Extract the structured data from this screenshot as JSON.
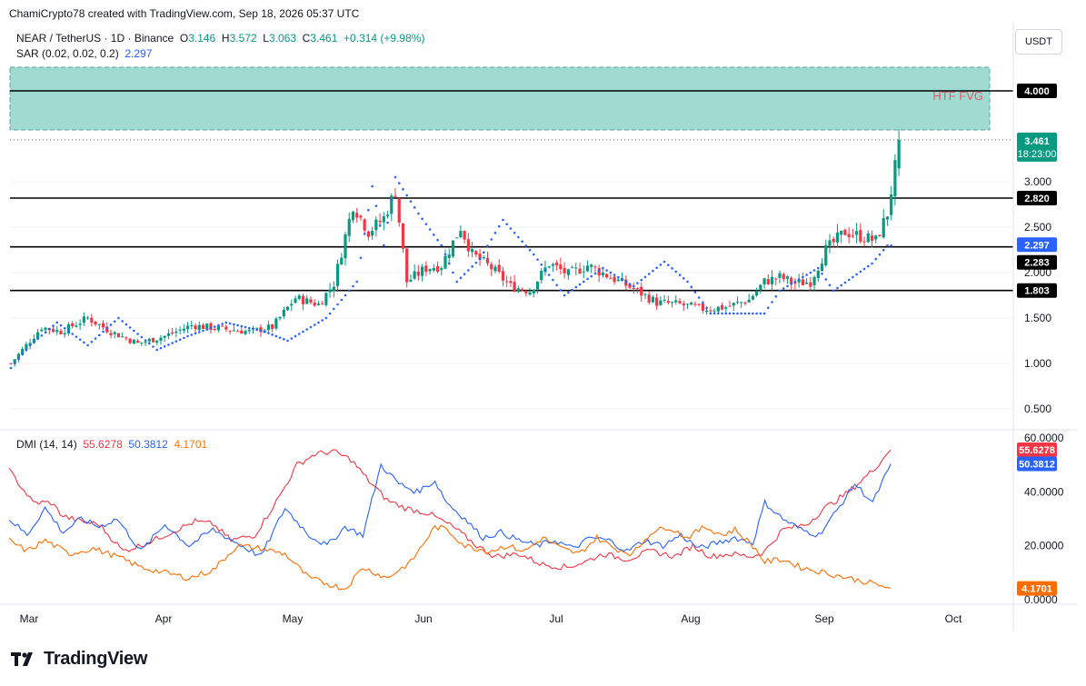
{
  "header": {
    "published": "ChamiCrypto78 created with TradingView.com, Sep 18, 2026 05:37 UTC",
    "symbol": "NEAR / TetherUS · 1D · Binance",
    "o_label": "O",
    "o_value": "3.146",
    "h_label": "H",
    "h_value": "3.572",
    "l_label": "L",
    "l_value": "3.063",
    "c_label": "C",
    "c_value": "3.461",
    "change": "+0.314 (+9.98%)",
    "sar_label": "SAR (0.02, 0.02, 0.2)",
    "sar_value": "2.297",
    "dmi_label": "DMI (14, 14)",
    "dmi_plus": "55.6278",
    "dmi_minus": "50.3812",
    "adx": "4.1701",
    "currency": "USDT",
    "brand": "TradingView"
  },
  "colors": {
    "up": "#089981",
    "down": "#f23645",
    "sar": "#2962ff",
    "fvg": "#9bd9cf",
    "dmi_plus": "#f23645",
    "dmi_minus": "#2962ff",
    "adx": "#ff6d00",
    "level": "#000000"
  },
  "chart_data": [
    {
      "type": "candlestick",
      "title": "NEAR / TetherUS · 1D · Binance",
      "x_ticks": [
        "Mar",
        "Apr",
        "May",
        "Jun",
        "Jul",
        "Aug",
        "Sep",
        "Oct"
      ],
      "y_ticks": [
        "0.500",
        "1.000",
        "1.500",
        "2.000",
        "2.500",
        "3.000"
      ],
      "ylim": [
        0.3,
        4.3
      ],
      "horizontal_levels": [
        {
          "value": 4.0,
          "label": "4.000"
        },
        {
          "value": 2.82,
          "label": "2.820"
        },
        {
          "value": 2.283,
          "label": "2.283"
        },
        {
          "value": 1.803,
          "label": "1.803"
        }
      ],
      "zone": {
        "label": "HTF FVG",
        "from": 3.57,
        "to": 4.26
      },
      "last_price": {
        "value": 3.461,
        "label": "3.461",
        "countdown": "18:23:00"
      },
      "sar_last": {
        "value": 2.297,
        "label": "2.297"
      },
      "close_anchors": [
        [
          0,
          1.0
        ],
        [
          4,
          1.2
        ],
        [
          8,
          1.4
        ],
        [
          13,
          1.35
        ],
        [
          20,
          1.5
        ],
        [
          26,
          1.35
        ],
        [
          33,
          1.22
        ],
        [
          40,
          1.3
        ],
        [
          47,
          1.42
        ],
        [
          55,
          1.38
        ],
        [
          62,
          1.35
        ],
        [
          68,
          1.4
        ],
        [
          74,
          1.72
        ],
        [
          80,
          1.65
        ],
        [
          84,
          1.88
        ],
        [
          89,
          2.75
        ],
        [
          93,
          2.45
        ],
        [
          97,
          2.6
        ],
        [
          100,
          2.9
        ],
        [
          103,
          1.9
        ],
        [
          108,
          2.05
        ],
        [
          112,
          2.08
        ],
        [
          117,
          2.5
        ],
        [
          120,
          2.2
        ],
        [
          125,
          2.05
        ],
        [
          130,
          1.85
        ],
        [
          135,
          1.8
        ],
        [
          140,
          2.1
        ],
        [
          145,
          1.98
        ],
        [
          150,
          2.08
        ],
        [
          156,
          1.95
        ],
        [
          162,
          1.82
        ],
        [
          168,
          1.67
        ],
        [
          174,
          1.65
        ],
        [
          180,
          1.6
        ],
        [
          186,
          1.62
        ],
        [
          192,
          1.7
        ],
        [
          196,
          1.9
        ],
        [
          200,
          1.95
        ],
        [
          204,
          1.88
        ],
        [
          208,
          1.9
        ],
        [
          212,
          2.25
        ],
        [
          217,
          2.45
        ],
        [
          221,
          2.4
        ],
        [
          225,
          2.35
        ],
        [
          228,
          2.65
        ],
        [
          230,
          3.15
        ],
        [
          231,
          3.461
        ]
      ],
      "sar_anchors": [
        [
          0,
          0.95
        ],
        [
          5,
          1.2
        ],
        [
          12,
          1.45
        ],
        [
          20,
          1.2
        ],
        [
          28,
          1.5
        ],
        [
          38,
          1.15
        ],
        [
          46,
          1.3
        ],
        [
          56,
          1.45
        ],
        [
          66,
          1.35
        ],
        [
          72,
          1.25
        ],
        [
          82,
          1.5
        ],
        [
          90,
          1.9
        ],
        [
          94,
          2.95
        ],
        [
          97,
          2.3
        ],
        [
          100,
          3.05
        ],
        [
          106,
          2.65
        ],
        [
          112,
          2.3
        ],
        [
          116,
          1.9
        ],
        [
          122,
          2.15
        ],
        [
          128,
          2.58
        ],
        [
          136,
          2.2
        ],
        [
          144,
          1.75
        ],
        [
          154,
          2.05
        ],
        [
          162,
          1.85
        ],
        [
          170,
          2.12
        ],
        [
          176,
          1.9
        ],
        [
          182,
          1.55
        ],
        [
          196,
          1.55
        ],
        [
          200,
          1.8
        ],
        [
          210,
          2.05
        ],
        [
          214,
          1.8
        ],
        [
          224,
          2.1
        ],
        [
          228,
          2.297
        ]
      ],
      "n_days": 232
    },
    {
      "type": "line",
      "title": "DMI (14, 14)",
      "y_ticks": [
        "0.0000",
        "20.0000",
        "40.0000",
        "60.0000"
      ],
      "ylim": [
        0,
        60
      ],
      "series": [
        {
          "name": "55.6278",
          "last": 55.6278,
          "color": "#f23645",
          "anchors": [
            [
              0,
              48
            ],
            [
              8,
              36
            ],
            [
              14,
              36
            ],
            [
              18,
              31
            ],
            [
              24,
              29
            ],
            [
              30,
              28
            ],
            [
              38,
              18
            ],
            [
              46,
              21
            ],
            [
              54,
              25
            ],
            [
              62,
              29
            ],
            [
              68,
              28
            ],
            [
              74,
              22
            ],
            [
              82,
              24
            ],
            [
              90,
              38
            ],
            [
              96,
              50
            ],
            [
              102,
              54
            ],
            [
              108,
              55
            ],
            [
              114,
              52
            ],
            [
              120,
              44
            ],
            [
              126,
              37
            ],
            [
              132,
              34
            ],
            [
              140,
              32
            ],
            [
              148,
              27
            ],
            [
              156,
              20
            ],
            [
              162,
              16
            ],
            [
              170,
              17
            ],
            [
              178,
              13
            ],
            [
              186,
              12
            ],
            [
              192,
              14
            ],
            [
              198,
              17
            ],
            [
              206,
              15
            ],
            [
              214,
              18
            ],
            [
              222,
              16
            ],
            [
              228,
              20
            ],
            [
              234,
              16
            ],
            [
              240,
              17
            ],
            [
              248,
              16
            ],
            [
              252,
              18
            ],
            [
              258,
              26
            ],
            [
              266,
              28
            ],
            [
              272,
              34
            ],
            [
              280,
              40
            ],
            [
              288,
              48
            ],
            [
              294,
              55.6
            ]
          ]
        },
        {
          "name": "50.3812",
          "last": 50.3812,
          "color": "#2962ff",
          "anchors": [
            [
              0,
              30
            ],
            [
              6,
              24
            ],
            [
              12,
              34
            ],
            [
              18,
              25
            ],
            [
              24,
              30
            ],
            [
              30,
              27
            ],
            [
              36,
              30
            ],
            [
              44,
              18
            ],
            [
              52,
              28
            ],
            [
              60,
              20
            ],
            [
              68,
              26
            ],
            [
              76,
              21
            ],
            [
              84,
              16
            ],
            [
              92,
              34
            ],
            [
              100,
              24
            ],
            [
              106,
              20
            ],
            [
              112,
              27
            ],
            [
              118,
              24
            ],
            [
              124,
              50
            ],
            [
              130,
              43
            ],
            [
              136,
              40
            ],
            [
              142,
              44
            ],
            [
              146,
              36
            ],
            [
              152,
              30
            ],
            [
              158,
              23
            ],
            [
              164,
              25
            ],
            [
              170,
              22
            ],
            [
              176,
              20
            ],
            [
              182,
              22
            ],
            [
              188,
              19
            ],
            [
              194,
              23
            ],
            [
              200,
              22
            ],
            [
              206,
              18
            ],
            [
              212,
              22
            ],
            [
              218,
              20
            ],
            [
              224,
              24
            ],
            [
              230,
              19
            ],
            [
              236,
              21
            ],
            [
              242,
              23
            ],
            [
              248,
              21
            ],
            [
              252,
              36
            ],
            [
              258,
              30
            ],
            [
              264,
              26
            ],
            [
              270,
              24
            ],
            [
              276,
              33
            ],
            [
              282,
              43
            ],
            [
              288,
              36
            ],
            [
              294,
              50.4
            ]
          ]
        },
        {
          "name": "4.1701",
          "last": 4.1701,
          "color": "#ff6d00",
          "anchors": [
            [
              0,
              22
            ],
            [
              6,
              18
            ],
            [
              12,
              22
            ],
            [
              20,
              17
            ],
            [
              28,
              19
            ],
            [
              36,
              16
            ],
            [
              44,
              12
            ],
            [
              52,
              10
            ],
            [
              60,
              8
            ],
            [
              68,
              11
            ],
            [
              76,
              20
            ],
            [
              84,
              19
            ],
            [
              92,
              17
            ],
            [
              100,
              8
            ],
            [
              106,
              6
            ],
            [
              112,
              4
            ],
            [
              118,
              12
            ],
            [
              126,
              8
            ],
            [
              134,
              14
            ],
            [
              142,
              27
            ],
            [
              146,
              26
            ],
            [
              152,
              20
            ],
            [
              160,
              18
            ],
            [
              166,
              20
            ],
            [
              172,
              18
            ],
            [
              178,
              23
            ],
            [
              184,
              19
            ],
            [
              190,
              17
            ],
            [
              196,
              23
            ],
            [
              202,
              19
            ],
            [
              208,
              17
            ],
            [
              214,
              25
            ],
            [
              220,
              27
            ],
            [
              226,
              23
            ],
            [
              232,
              27
            ],
            [
              238,
              24
            ],
            [
              242,
              26
            ],
            [
              248,
              20
            ],
            [
              252,
              14
            ],
            [
              258,
              15
            ],
            [
              264,
              12
            ],
            [
              272,
              10
            ],
            [
              280,
              8
            ],
            [
              288,
              6
            ],
            [
              294,
              4.2
            ]
          ]
        }
      ]
    }
  ]
}
